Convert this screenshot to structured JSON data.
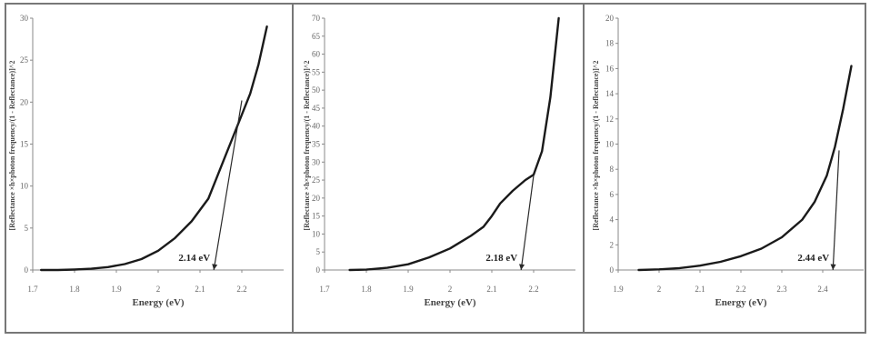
{
  "chart_data": [
    {
      "type": "line",
      "xlabel": "Energy (eV)",
      "ylabel": "[Reflectance ×h×photon frequency/(1 - Reflectance)]^2",
      "xlim": [
        1.7,
        2.3
      ],
      "ylim": [
        0,
        30
      ],
      "x_ticks": [
        "1.7",
        "1.8",
        "1.9",
        "2",
        "2.1",
        "2.2"
      ],
      "y_ticks": [
        "0",
        "5",
        "10",
        "15",
        "20",
        "25",
        "30"
      ],
      "series": [
        {
          "x": [
            1.72,
            1.76,
            1.8,
            1.84,
            1.88,
            1.92,
            1.96,
            2.0,
            2.04,
            2.08,
            2.12,
            2.14,
            2.16,
            2.18,
            2.2,
            2.22,
            2.24,
            2.26
          ],
          "values": [
            0.0,
            0.0,
            0.05,
            0.15,
            0.35,
            0.7,
            1.3,
            2.3,
            3.8,
            5.8,
            8.5,
            11.0,
            13.5,
            16.0,
            18.5,
            21.0,
            24.5,
            29.0
          ]
        }
      ],
      "tangent": {
        "from": [
          2.2,
          20.2
        ],
        "to": [
          2.133,
          0
        ]
      },
      "annotation": {
        "text": "2.14 eV",
        "x": 2.14,
        "y": 0
      },
      "grid": false
    },
    {
      "type": "line",
      "xlabel": "Energy (eV)",
      "ylabel": "[Reflectance ×h×photon frequency/(1 - Reflectance)]^2",
      "xlim": [
        1.7,
        2.3
      ],
      "ylim": [
        0,
        70
      ],
      "x_ticks": [
        "1.7",
        "1.8",
        "1.9",
        "2",
        "2.1",
        "2.2"
      ],
      "y_ticks": [
        "0",
        "5",
        "10",
        "15",
        "20",
        "25",
        "30",
        "35",
        "40",
        "45",
        "50",
        "55",
        "60",
        "65",
        "70"
      ],
      "series": [
        {
          "x": [
            1.76,
            1.8,
            1.85,
            1.9,
            1.95,
            2.0,
            2.05,
            2.08,
            2.1,
            2.12,
            2.15,
            2.18,
            2.2,
            2.22,
            2.24,
            2.26
          ],
          "values": [
            0.0,
            0.1,
            0.6,
            1.6,
            3.5,
            6.0,
            9.5,
            12.0,
            15.0,
            18.5,
            22.0,
            25.0,
            26.5,
            33.0,
            48.0,
            70.0
          ]
        }
      ],
      "tangent": {
        "from": [
          2.2,
          26.3
        ],
        "to": [
          2.17,
          0
        ]
      },
      "annotation": {
        "text": "2.18 eV",
        "x": 2.18,
        "y": 0
      },
      "grid": false
    },
    {
      "type": "line",
      "xlabel": "Energy (eV)",
      "ylabel": "[Reflectance ×h×photon frequency/(1 - Reflectance)]^2",
      "xlim": [
        1.9,
        2.5
      ],
      "ylim": [
        0,
        20
      ],
      "x_ticks": [
        "1.9",
        "2",
        "2.1",
        "2.2",
        "2.3",
        "2.4"
      ],
      "y_ticks": [
        "0",
        "2",
        "4",
        "6",
        "8",
        "10",
        "12",
        "14",
        "16",
        "18",
        "20"
      ],
      "series": [
        {
          "x": [
            1.95,
            2.0,
            2.05,
            2.1,
            2.15,
            2.2,
            2.25,
            2.3,
            2.35,
            2.38,
            2.41,
            2.43,
            2.45,
            2.47
          ],
          "values": [
            0.0,
            0.05,
            0.15,
            0.35,
            0.65,
            1.1,
            1.7,
            2.6,
            4.0,
            5.4,
            7.5,
            9.8,
            12.8,
            16.2
          ]
        }
      ],
      "tangent": {
        "from": [
          2.44,
          9.5
        ],
        "to": [
          2.425,
          0
        ]
      },
      "annotation": {
        "text": "2.44 eV",
        "x": 2.44,
        "y": 0
      },
      "grid": false
    }
  ]
}
